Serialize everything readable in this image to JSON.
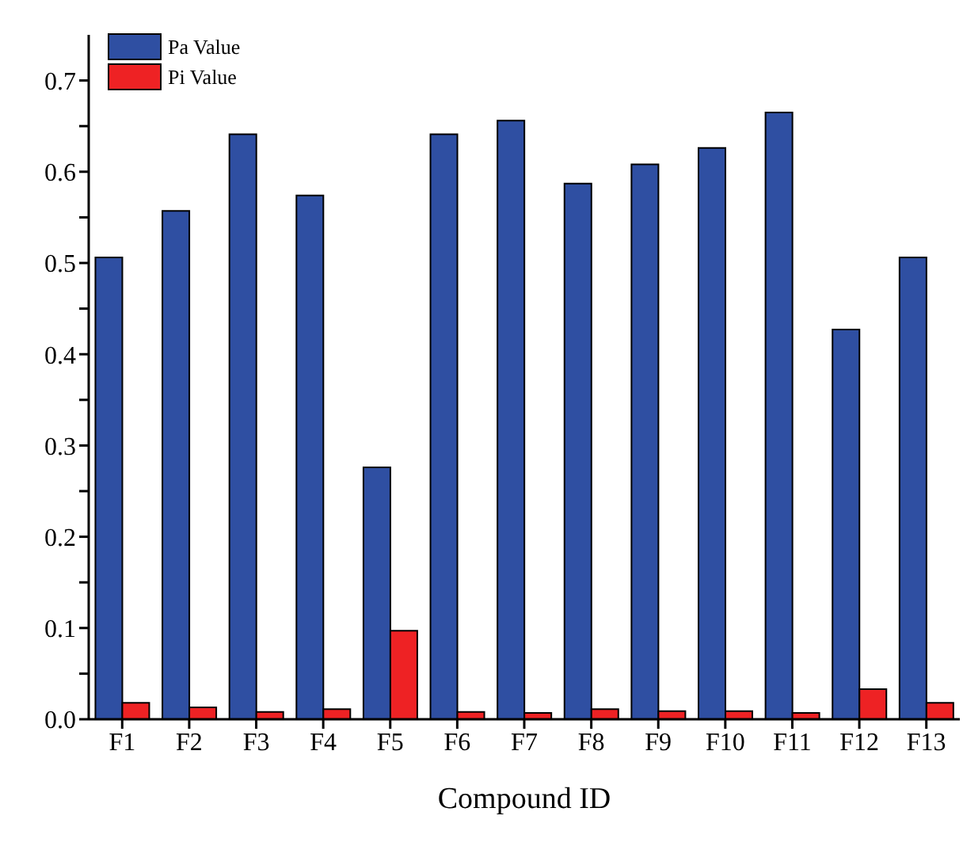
{
  "chart_data": {
    "type": "bar",
    "xlabel": "Compound ID",
    "categories": [
      "F1",
      "F2",
      "F3",
      "F4",
      "F5",
      "F6",
      "F7",
      "F8",
      "F9",
      "F10",
      "F11",
      "F12",
      "F13"
    ],
    "series": [
      {
        "name": "Pa Value",
        "color": "#2f4fa2",
        "values": [
          0.506,
          0.557,
          0.641,
          0.574,
          0.276,
          0.641,
          0.656,
          0.587,
          0.608,
          0.626,
          0.665,
          0.427,
          0.506
        ]
      },
      {
        "name": "Pi Value",
        "color": "#ee2224",
        "values": [
          0.018,
          0.013,
          0.008,
          0.011,
          0.097,
          0.008,
          0.007,
          0.011,
          0.009,
          0.009,
          0.007,
          0.033,
          0.018
        ]
      }
    ],
    "ylim": [
      0,
      0.75
    ],
    "yticks": [
      {
        "value": 0,
        "label": "0.0"
      },
      {
        "value": 0.05,
        "label": null
      },
      0.1,
      {
        "value": 0.15,
        "label": null
      },
      0.2,
      {
        "value": 0.25,
        "label": null
      },
      0.3,
      {
        "value": 0.35,
        "label": null
      },
      0.4,
      {
        "value": 0.45,
        "label": null
      },
      0.5,
      {
        "value": 0.55,
        "label": null
      },
      0.6,
      {
        "value": 0.65,
        "label": null
      },
      0.7
    ],
    "grid": false,
    "legend": "top left"
  }
}
